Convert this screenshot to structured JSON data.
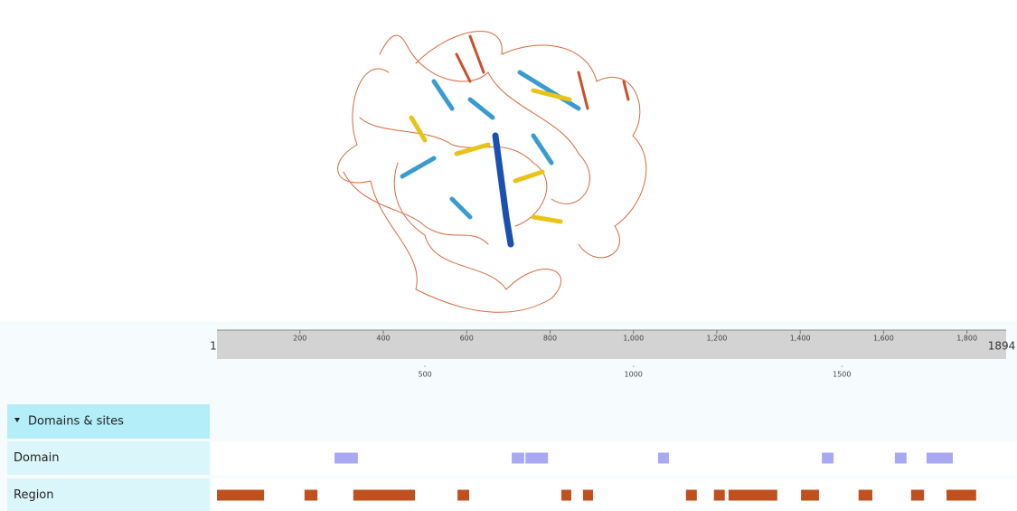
{
  "viewer": {
    "ruler": {
      "start": 1,
      "end": 1894,
      "ticks": [
        200,
        400,
        600,
        800,
        {
          "value": 1000,
          "label": "1,000"
        },
        {
          "value": 1200,
          "label": "1,200"
        },
        {
          "value": 1400,
          "label": "1,400"
        },
        {
          "value": 1600,
          "label": "1,600"
        },
        {
          "value": 1800,
          "label": "1,800"
        }
      ]
    },
    "overview_ticks": [
      500,
      1000,
      1500
    ],
    "tracks": {
      "category": "Domains & sites",
      "rows": [
        {
          "label": "Domain",
          "color": "#a9a8f2",
          "features": [
            [
              283,
              339
            ],
            [
              708,
              738
            ],
            [
              741,
              795
            ],
            [
              1059,
              1085
            ],
            [
              1452,
              1480
            ],
            [
              1627,
              1655
            ],
            [
              1703,
              1766
            ]
          ]
        },
        {
          "label": "Region",
          "color": "#c0501e",
          "features": [
            [
              1,
              114
            ],
            [
              211,
              242
            ],
            [
              328,
              476
            ],
            [
              578,
              606
            ],
            [
              827,
              851
            ],
            [
              879,
              903
            ],
            [
              1126,
              1152
            ],
            [
              1193,
              1219
            ],
            [
              1228,
              1345
            ],
            [
              1402,
              1445
            ],
            [
              1540,
              1573
            ],
            [
              1666,
              1697
            ],
            [
              1751,
              1822
            ]
          ]
        }
      ]
    }
  }
}
